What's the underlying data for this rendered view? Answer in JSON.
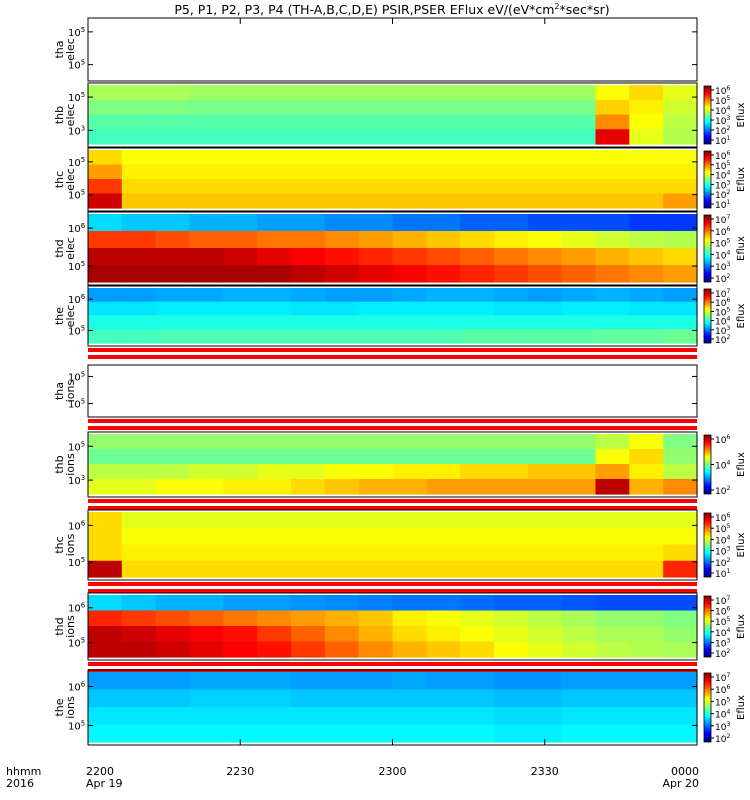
{
  "title": "P5, P1, P2, P3, P4 (TH-A,B,C,D,E) PSIR,PSER EFlux eV/(eV*cm",
  "title_sup": "2",
  "title_end": "*sec*sr)",
  "colorbar_label": "Eflux",
  "time_axis": {
    "row_label_1": "hhmm",
    "row_label_2": "2016",
    "ticks": [
      {
        "time": "2200",
        "date": "Apr 19"
      },
      {
        "time": "2230",
        "date": ""
      },
      {
        "time": "2300",
        "date": ""
      },
      {
        "time": "2330",
        "date": ""
      },
      {
        "time": "0000",
        "date": "Apr 20"
      }
    ]
  },
  "colors": {
    "jet": [
      "#000080",
      "#0000ff",
      "#0080ff",
      "#00ffff",
      "#80ff80",
      "#ffff00",
      "#ff8000",
      "#ff0000",
      "#800000"
    ],
    "flag_red": "#ff0000"
  },
  "chart_data": {
    "type": "heatmap",
    "x_range": [
      "2200 Apr 19",
      "0000 Apr 20"
    ],
    "n_time_bins": 18,
    "panels": [
      {
        "name_1": "tha",
        "name_2": "elec",
        "yticks": [
          {
            "b": "10",
            "e": "5"
          },
          {
            "b": "10",
            "e": "5"
          }
        ],
        "has_data": false,
        "flag_bars": false,
        "cb": null,
        "levels": []
      },
      {
        "name_1": "thb",
        "name_2": "elec",
        "yticks": [
          {
            "b": "10",
            "e": "5"
          },
          {
            "b": "10",
            "e": "3"
          }
        ],
        "has_data": true,
        "flag_bars": false,
        "cb": [
          "10|6",
          "10|5",
          "10|4",
          "10|3",
          "10|2",
          "10|1"
        ],
        "levels": [
          [
            0.54,
            0.54,
            0.54,
            0.53,
            0.53,
            0.53,
            0.53,
            0.53,
            0.53,
            0.53,
            0.53,
            0.53,
            0.53,
            0.53,
            0.53,
            0.62,
            0.66,
            0.6
          ],
          [
            0.5,
            0.5,
            0.5,
            0.49,
            0.49,
            0.49,
            0.49,
            0.49,
            0.49,
            0.49,
            0.49,
            0.49,
            0.49,
            0.49,
            0.49,
            0.67,
            0.64,
            0.58
          ],
          [
            0.46,
            0.46,
            0.46,
            0.46,
            0.46,
            0.46,
            0.46,
            0.46,
            0.46,
            0.46,
            0.46,
            0.46,
            0.46,
            0.46,
            0.46,
            0.74,
            0.62,
            0.56
          ],
          [
            0.44,
            0.44,
            0.44,
            0.44,
            0.44,
            0.44,
            0.44,
            0.44,
            0.44,
            0.44,
            0.44,
            0.44,
            0.44,
            0.44,
            0.44,
            0.9,
            0.6,
            0.55
          ]
        ]
      },
      {
        "name_1": "thc",
        "name_2": "elec",
        "yticks": [
          {
            "b": "10",
            "e": "5"
          },
          {
            "b": "10",
            "e": "5"
          }
        ],
        "has_data": true,
        "flag_bars": false,
        "cb": [
          "10|6",
          "10|5",
          "10|4",
          "10|3",
          "10|2",
          "10|1"
        ],
        "levels": [
          [
            0.66,
            0.62,
            0.62,
            0.62,
            0.62,
            0.62,
            0.62,
            0.62,
            0.62,
            0.62,
            0.62,
            0.62,
            0.62,
            0.62,
            0.62,
            0.62,
            0.62,
            0.62
          ],
          [
            0.72,
            0.64,
            0.64,
            0.64,
            0.64,
            0.64,
            0.64,
            0.64,
            0.64,
            0.64,
            0.64,
            0.64,
            0.64,
            0.64,
            0.64,
            0.64,
            0.64,
            0.64
          ],
          [
            0.82,
            0.66,
            0.66,
            0.66,
            0.66,
            0.66,
            0.66,
            0.66,
            0.66,
            0.66,
            0.66,
            0.66,
            0.66,
            0.66,
            0.66,
            0.66,
            0.66,
            0.66
          ],
          [
            0.92,
            0.68,
            0.68,
            0.68,
            0.68,
            0.68,
            0.68,
            0.68,
            0.68,
            0.68,
            0.68,
            0.68,
            0.68,
            0.68,
            0.68,
            0.68,
            0.68,
            0.72
          ]
        ]
      },
      {
        "name_1": "thd",
        "name_2": "elec",
        "yticks": [
          {
            "b": "10",
            "e": "6"
          },
          {
            "b": "10",
            "e": "5"
          }
        ],
        "has_data": true,
        "flag_bars": false,
        "cb": [
          "10|7",
          "10|6",
          "10|5",
          "10|4",
          "10|3",
          "10|2"
        ],
        "levels": [
          [
            0.34,
            0.32,
            0.32,
            0.3,
            0.3,
            0.28,
            0.28,
            0.26,
            0.26,
            0.24,
            0.24,
            0.22,
            0.22,
            0.2,
            0.2,
            0.2,
            0.18,
            0.18
          ],
          [
            0.82,
            0.82,
            0.8,
            0.78,
            0.78,
            0.76,
            0.76,
            0.74,
            0.72,
            0.7,
            0.68,
            0.66,
            0.64,
            0.62,
            0.6,
            0.58,
            0.56,
            0.55
          ],
          [
            0.94,
            0.94,
            0.94,
            0.94,
            0.92,
            0.9,
            0.88,
            0.86,
            0.84,
            0.82,
            0.8,
            0.78,
            0.76,
            0.74,
            0.72,
            0.7,
            0.68,
            0.66
          ],
          [
            0.96,
            0.96,
            0.96,
            0.96,
            0.96,
            0.96,
            0.94,
            0.92,
            0.9,
            0.88,
            0.86,
            0.84,
            0.82,
            0.8,
            0.78,
            0.76,
            0.74,
            0.72
          ]
        ]
      },
      {
        "name_1": "the",
        "name_2": "elec",
        "yticks": [
          {
            "b": "10",
            "e": "6"
          },
          {
            "b": "10",
            "e": "5"
          }
        ],
        "has_data": true,
        "flag_bars": true,
        "cb": [
          "10|7",
          "10|6",
          "10|5",
          "10|4",
          "10|3",
          "10|2"
        ],
        "levels": [
          [
            0.28,
            0.28,
            0.29,
            0.29,
            0.3,
            0.3,
            0.29,
            0.28,
            0.28,
            0.29,
            0.3,
            0.3,
            0.29,
            0.28,
            0.29,
            0.3,
            0.29,
            0.28
          ],
          [
            0.35,
            0.35,
            0.36,
            0.36,
            0.36,
            0.36,
            0.35,
            0.35,
            0.36,
            0.36,
            0.36,
            0.36,
            0.35,
            0.35,
            0.36,
            0.36,
            0.35,
            0.35
          ],
          [
            0.4,
            0.4,
            0.4,
            0.4,
            0.4,
            0.4,
            0.4,
            0.4,
            0.4,
            0.4,
            0.4,
            0.4,
            0.4,
            0.4,
            0.4,
            0.4,
            0.4,
            0.4
          ],
          [
            0.44,
            0.44,
            0.45,
            0.45,
            0.45,
            0.45,
            0.45,
            0.45,
            0.45,
            0.45,
            0.45,
            0.46,
            0.46,
            0.46,
            0.46,
            0.47,
            0.47,
            0.48
          ]
        ]
      },
      {
        "name_1": "tha",
        "name_2": "ions",
        "yticks": [
          {
            "b": "10",
            "e": "5"
          },
          {
            "b": "10",
            "e": "5"
          }
        ],
        "has_data": false,
        "flag_bars": true,
        "cb": null,
        "levels": []
      },
      {
        "name_1": "thb",
        "name_2": "ions",
        "yticks": [
          {
            "b": "10",
            "e": "5"
          },
          {
            "b": "10",
            "e": "3"
          }
        ],
        "has_data": true,
        "flag_bars": true,
        "cb": [
          "10|6",
          "10|4",
          "10|2"
        ],
        "levels": [
          [
            0.52,
            0.52,
            0.52,
            0.52,
            0.52,
            0.52,
            0.52,
            0.52,
            0.52,
            0.52,
            0.52,
            0.52,
            0.52,
            0.52,
            0.52,
            0.56,
            0.62,
            0.5
          ],
          [
            0.48,
            0.48,
            0.48,
            0.48,
            0.48,
            0.48,
            0.48,
            0.48,
            0.48,
            0.48,
            0.48,
            0.48,
            0.48,
            0.48,
            0.48,
            0.62,
            0.66,
            0.52
          ],
          [
            0.56,
            0.56,
            0.56,
            0.58,
            0.58,
            0.6,
            0.6,
            0.62,
            0.62,
            0.64,
            0.64,
            0.66,
            0.66,
            0.68,
            0.68,
            0.72,
            0.64,
            0.56
          ],
          [
            0.6,
            0.6,
            0.62,
            0.62,
            0.64,
            0.64,
            0.66,
            0.68,
            0.7,
            0.7,
            0.72,
            0.72,
            0.72,
            0.72,
            0.72,
            0.94,
            0.7,
            0.74
          ]
        ]
      },
      {
        "name_1": "thc",
        "name_2": "ions",
        "yticks": [
          {
            "b": "10",
            "e": "6"
          },
          {
            "b": "10",
            "e": "5"
          }
        ],
        "has_data": true,
        "flag_bars": true,
        "cb": [
          "10|6",
          "10|5",
          "10|4",
          "10|3",
          "10|2",
          "10|1"
        ],
        "levels": [
          [
            0.66,
            0.6,
            0.6,
            0.6,
            0.6,
            0.6,
            0.6,
            0.6,
            0.6,
            0.6,
            0.6,
            0.6,
            0.6,
            0.6,
            0.6,
            0.6,
            0.6,
            0.6
          ],
          [
            0.66,
            0.62,
            0.62,
            0.62,
            0.62,
            0.62,
            0.62,
            0.62,
            0.62,
            0.62,
            0.62,
            0.62,
            0.62,
            0.62,
            0.62,
            0.62,
            0.62,
            0.62
          ],
          [
            0.66,
            0.64,
            0.64,
            0.64,
            0.64,
            0.64,
            0.64,
            0.64,
            0.64,
            0.64,
            0.64,
            0.64,
            0.64,
            0.64,
            0.64,
            0.64,
            0.64,
            0.66
          ],
          [
            0.94,
            0.66,
            0.66,
            0.66,
            0.66,
            0.66,
            0.66,
            0.66,
            0.66,
            0.66,
            0.66,
            0.66,
            0.66,
            0.66,
            0.66,
            0.66,
            0.66,
            0.84
          ]
        ]
      },
      {
        "name_1": "thd",
        "name_2": "ions",
        "yticks": [
          {
            "b": "10",
            "e": "6"
          },
          {
            "b": "10",
            "e": "5"
          }
        ],
        "has_data": true,
        "flag_bars": true,
        "cb": [
          "10|7",
          "10|6",
          "10|5",
          "10|4",
          "10|3",
          "10|2"
        ],
        "levels": [
          [
            0.34,
            0.32,
            0.3,
            0.3,
            0.28,
            0.28,
            0.27,
            0.26,
            0.25,
            0.24,
            0.24,
            0.23,
            0.22,
            0.22,
            0.21,
            0.2,
            0.2,
            0.2
          ],
          [
            0.84,
            0.82,
            0.8,
            0.78,
            0.76,
            0.74,
            0.72,
            0.7,
            0.68,
            0.64,
            0.62,
            0.6,
            0.58,
            0.56,
            0.54,
            0.52,
            0.52,
            0.5
          ],
          [
            0.94,
            0.92,
            0.9,
            0.88,
            0.86,
            0.82,
            0.78,
            0.74,
            0.7,
            0.66,
            0.64,
            0.62,
            0.6,
            0.58,
            0.56,
            0.54,
            0.54,
            0.52
          ],
          [
            0.94,
            0.94,
            0.92,
            0.9,
            0.88,
            0.86,
            0.82,
            0.78,
            0.74,
            0.7,
            0.68,
            0.66,
            0.62,
            0.6,
            0.58,
            0.56,
            0.55,
            0.54
          ]
        ]
      },
      {
        "name_1": "the",
        "name_2": "ions",
        "yticks": [
          {
            "b": "10",
            "e": "6"
          },
          {
            "b": "10",
            "e": "5"
          }
        ],
        "has_data": true,
        "flag_bars": false,
        "cb": [
          "10|7",
          "10|6",
          "10|5",
          "10|4",
          "10|3",
          "10|2"
        ],
        "levels": [
          [
            0.28,
            0.28,
            0.28,
            0.29,
            0.29,
            0.29,
            0.28,
            0.28,
            0.28,
            0.29,
            0.28,
            0.28,
            0.27,
            0.27,
            0.28,
            0.28,
            0.28,
            0.28
          ],
          [
            0.32,
            0.32,
            0.32,
            0.33,
            0.33,
            0.33,
            0.32,
            0.32,
            0.32,
            0.32,
            0.32,
            0.32,
            0.31,
            0.31,
            0.32,
            0.32,
            0.32,
            0.32
          ],
          [
            0.35,
            0.35,
            0.35,
            0.35,
            0.35,
            0.35,
            0.35,
            0.35,
            0.35,
            0.35,
            0.35,
            0.35,
            0.34,
            0.34,
            0.35,
            0.35,
            0.35,
            0.35
          ],
          [
            0.37,
            0.37,
            0.37,
            0.37,
            0.37,
            0.37,
            0.37,
            0.37,
            0.37,
            0.37,
            0.37,
            0.37,
            0.36,
            0.36,
            0.37,
            0.37,
            0.37,
            0.37
          ]
        ]
      }
    ]
  }
}
